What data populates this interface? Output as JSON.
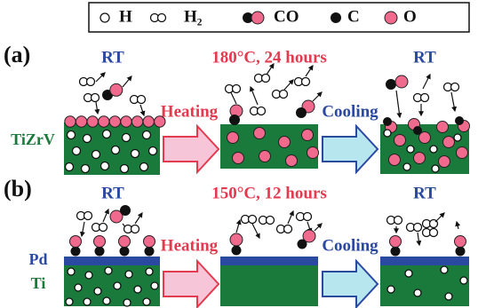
{
  "legend": {
    "items": [
      "H",
      "H₂",
      "CO",
      "C",
      "O"
    ]
  },
  "panels": [
    {
      "label": "(a)",
      "conditions": [
        "RT",
        "180°C, 24 hours",
        "RT"
      ],
      "steps": [
        "Heating",
        "Cooling"
      ],
      "materials": [
        "TiZrV"
      ]
    },
    {
      "label": "(b)",
      "conditions": [
        "RT",
        "150°C, 12 hours",
        "RT"
      ],
      "steps": [
        "Heating",
        "Cooling"
      ],
      "materials": [
        "Pd",
        "Ti"
      ]
    }
  ]
}
